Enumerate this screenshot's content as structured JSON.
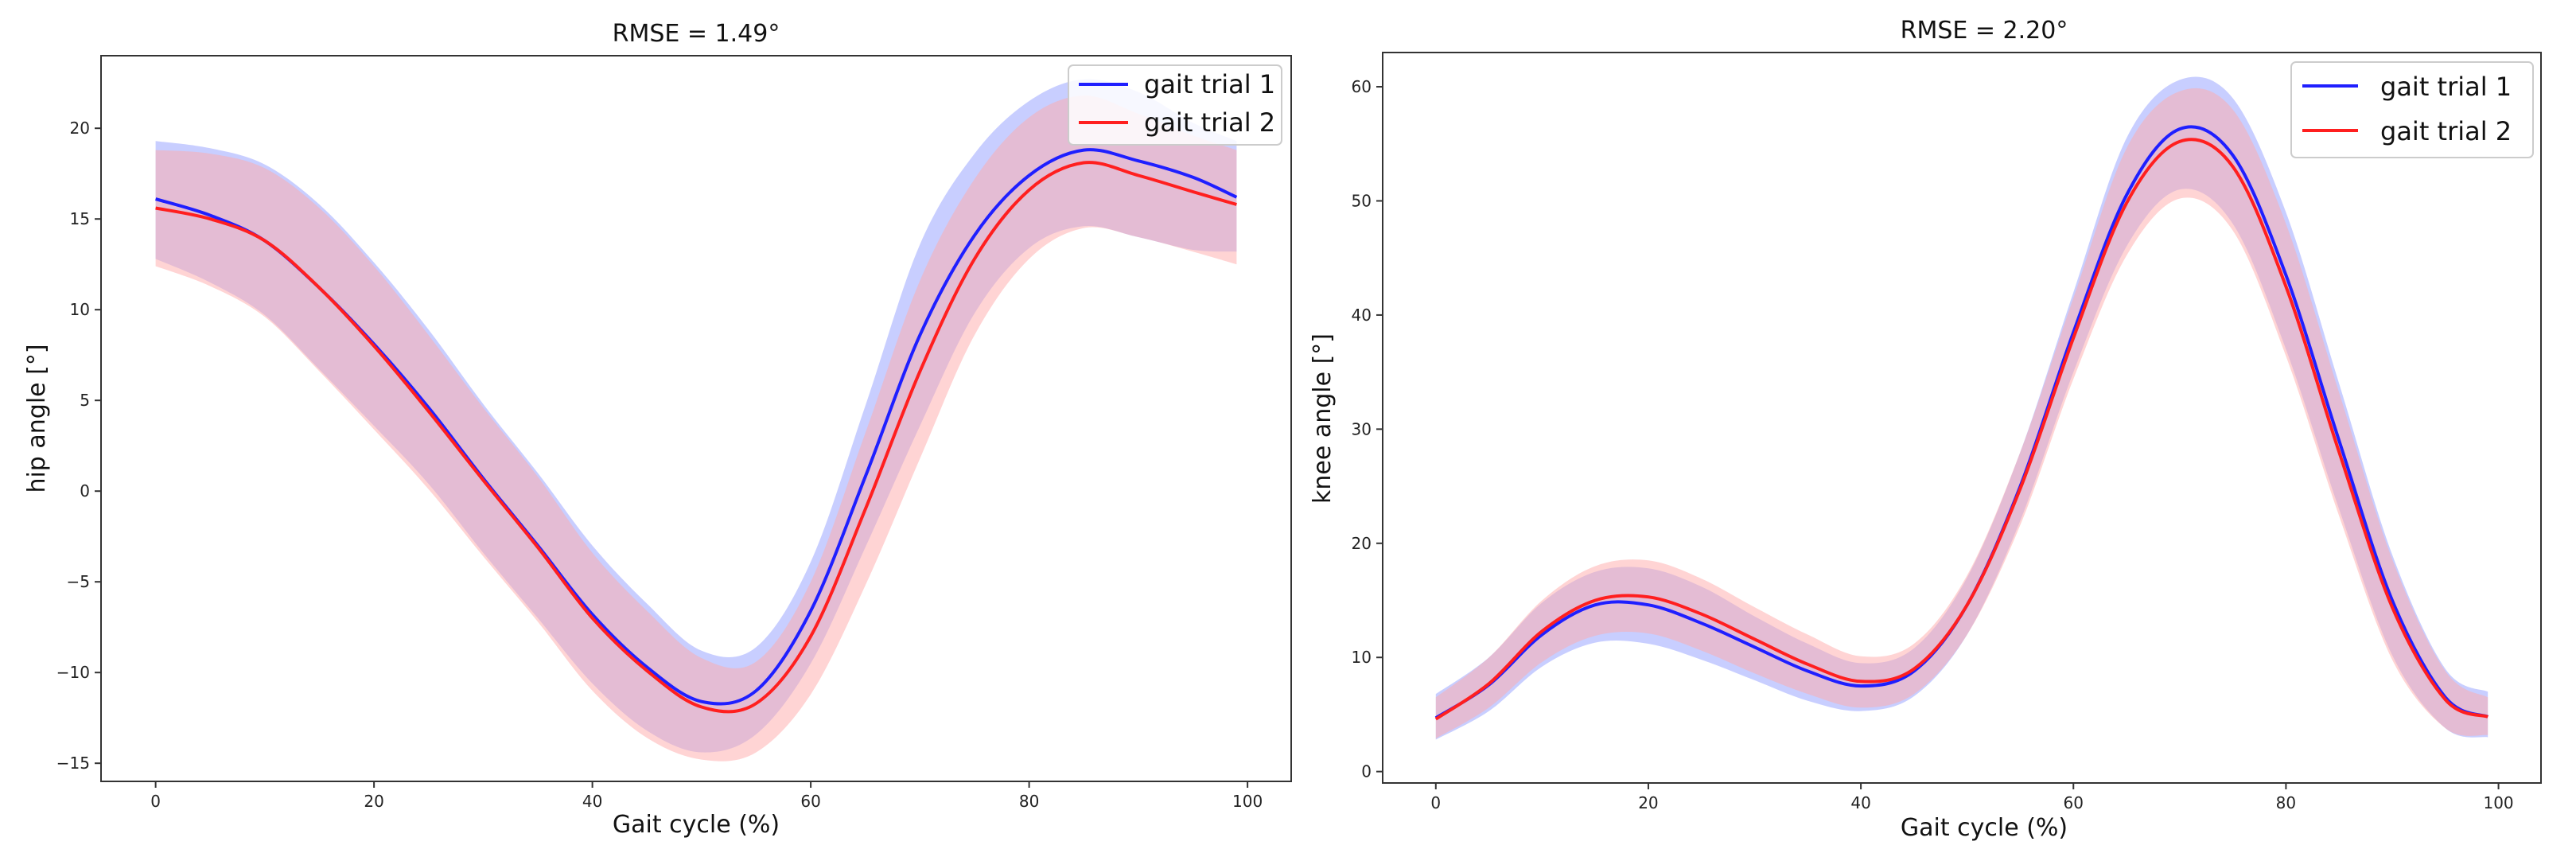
{
  "chart_data": [
    {
      "type": "line",
      "title": "RMSE = 1.49°",
      "xlabel": "Gait cycle (%)",
      "ylabel": "hip angle [°]",
      "xlim": [
        -5,
        104
      ],
      "ylim": [
        -16,
        24
      ],
      "xticks": [
        0,
        20,
        40,
        60,
        80,
        100
      ],
      "yticks": [
        -15,
        -10,
        -5,
        0,
        5,
        10,
        15,
        20
      ],
      "yticklabels": [
        "−15",
        "−10",
        "−5",
        "0",
        "5",
        "10",
        "15",
        "20"
      ],
      "legend_location": "top-right",
      "x": [
        0,
        5,
        10,
        15,
        20,
        25,
        30,
        35,
        40,
        45,
        50,
        55,
        60,
        65,
        70,
        75,
        80,
        85,
        90,
        95,
        99
      ],
      "series": [
        {
          "name": "gait trial 1",
          "color": "#1f1fff",
          "band_color": "#9aa6ff",
          "mean": [
            16.1,
            15.2,
            13.8,
            11.2,
            8.1,
            4.6,
            0.7,
            -3.0,
            -6.8,
            -9.7,
            -11.6,
            -11.0,
            -6.6,
            0.8,
            8.6,
            14.1,
            17.4,
            18.8,
            18.2,
            17.3,
            16.2
          ],
          "lower": [
            12.8,
            11.5,
            9.7,
            6.7,
            3.6,
            0.4,
            -3.4,
            -7.0,
            -10.6,
            -13.2,
            -14.4,
            -13.4,
            -9.5,
            -3.1,
            3.6,
            9.8,
            13.4,
            14.6,
            14.0,
            13.3,
            13.2
          ],
          "upper": [
            19.3,
            18.9,
            18.0,
            15.8,
            12.6,
            8.9,
            4.8,
            1.0,
            -3.0,
            -6.2,
            -8.8,
            -8.6,
            -3.9,
            4.7,
            13.6,
            18.6,
            21.5,
            22.7,
            22.0,
            20.3,
            19.3
          ]
        },
        {
          "name": "gait trial 2",
          "color": "#ff1f1f",
          "band_color": "#ffaaaa",
          "mean": [
            15.6,
            15.0,
            13.8,
            11.2,
            8.0,
            4.4,
            0.6,
            -3.1,
            -7.0,
            -9.9,
            -11.9,
            -11.7,
            -8.0,
            -1.0,
            6.6,
            12.8,
            16.6,
            18.1,
            17.4,
            16.5,
            15.8
          ],
          "lower": [
            12.4,
            11.3,
            9.6,
            6.6,
            3.4,
            0.1,
            -3.6,
            -7.2,
            -11.0,
            -13.6,
            -14.8,
            -14.4,
            -11.2,
            -5.2,
            1.8,
            8.6,
            12.8,
            14.5,
            14.0,
            13.2,
            12.5
          ],
          "upper": [
            18.8,
            18.6,
            17.8,
            15.6,
            12.4,
            8.6,
            4.6,
            0.8,
            -3.4,
            -6.6,
            -9.2,
            -9.4,
            -5.0,
            3.2,
            11.6,
            17.2,
            20.6,
            21.8,
            20.8,
            19.6,
            18.8
          ]
        }
      ]
    },
    {
      "type": "line",
      "title": "RMSE = 2.20°",
      "xlabel": "Gait cycle (%)",
      "ylabel": "knee angle [°]",
      "xlim": [
        -5,
        104
      ],
      "ylim": [
        -1,
        63
      ],
      "xticks": [
        0,
        20,
        40,
        60,
        80,
        100
      ],
      "yticks": [
        0,
        10,
        20,
        30,
        40,
        50,
        60
      ],
      "yticklabels": [
        "0",
        "10",
        "20",
        "30",
        "40",
        "50",
        "60"
      ],
      "legend_location": "top-right",
      "x": [
        0,
        5,
        10,
        15,
        20,
        25,
        30,
        35,
        40,
        45,
        50,
        55,
        60,
        65,
        70,
        75,
        80,
        85,
        90,
        95,
        99
      ],
      "series": [
        {
          "name": "gait trial 1",
          "color": "#1f1fff",
          "band_color": "#9aa6ff",
          "mean": [
            4.7,
            7.6,
            12.0,
            14.6,
            14.6,
            13.0,
            10.9,
            8.8,
            7.5,
            8.8,
            14.6,
            25.0,
            38.5,
            50.5,
            56.3,
            54.0,
            43.5,
            29.0,
            15.0,
            6.5,
            4.8
          ],
          "lower": [
            2.8,
            5.3,
            9.2,
            11.3,
            11.2,
            9.8,
            8.0,
            6.2,
            5.3,
            6.6,
            12.0,
            22.0,
            35.0,
            46.0,
            51.0,
            48.0,
            37.0,
            23.0,
            10.2,
            3.8,
            3.0
          ],
          "upper": [
            6.8,
            10.0,
            14.8,
            17.5,
            17.8,
            16.2,
            13.6,
            11.2,
            9.5,
            10.8,
            17.0,
            28.0,
            42.0,
            55.5,
            60.6,
            59.0,
            49.0,
            34.0,
            19.0,
            9.0,
            7.0
          ]
        },
        {
          "name": "gait trial 2",
          "color": "#ff1f1f",
          "band_color": "#ffaaaa",
          "mean": [
            4.6,
            7.7,
            12.3,
            15.0,
            15.3,
            13.8,
            11.6,
            9.4,
            7.9,
            9.0,
            14.6,
            24.8,
            38.0,
            49.8,
            55.2,
            53.0,
            42.5,
            28.0,
            14.4,
            6.3,
            4.8
          ],
          "lower": [
            2.9,
            5.6,
            9.6,
            11.9,
            12.1,
            10.6,
            8.6,
            6.8,
            5.6,
            6.8,
            12.0,
            21.6,
            34.4,
            45.2,
            50.2,
            47.4,
            36.4,
            22.4,
            9.8,
            3.8,
            3.2
          ],
          "upper": [
            6.5,
            10.0,
            15.0,
            18.0,
            18.5,
            16.9,
            14.4,
            12.0,
            10.1,
            11.2,
            17.2,
            28.0,
            41.5,
            54.6,
            59.6,
            58.0,
            48.0,
            33.2,
            18.6,
            8.8,
            6.5
          ]
        }
      ]
    }
  ]
}
